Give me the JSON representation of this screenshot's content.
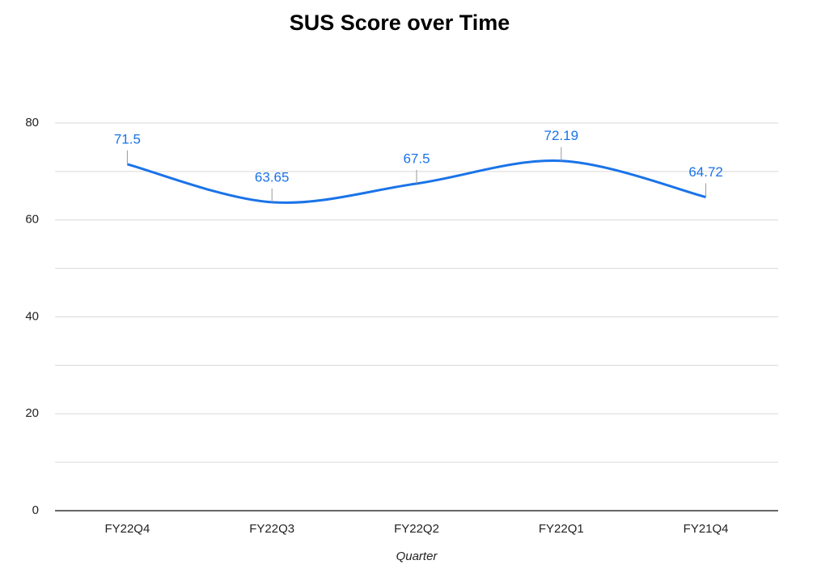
{
  "chart_data": {
    "type": "line",
    "title": "SUS Score over Time",
    "x_label": "Quarter",
    "categories": [
      "FY22Q4",
      "FY22Q3",
      "FY22Q2",
      "FY22Q1",
      "FY21Q4"
    ],
    "values": [
      71.5,
      63.65,
      67.5,
      72.19,
      64.72
    ],
    "color": "#1a73e8",
    "smooth": true,
    "data_labels": true,
    "ylim": [
      0,
      80
    ],
    "yticks": [
      0,
      20,
      40,
      60,
      80
    ],
    "minor_yticks": [
      10,
      30,
      50,
      70
    ],
    "grid": true
  }
}
